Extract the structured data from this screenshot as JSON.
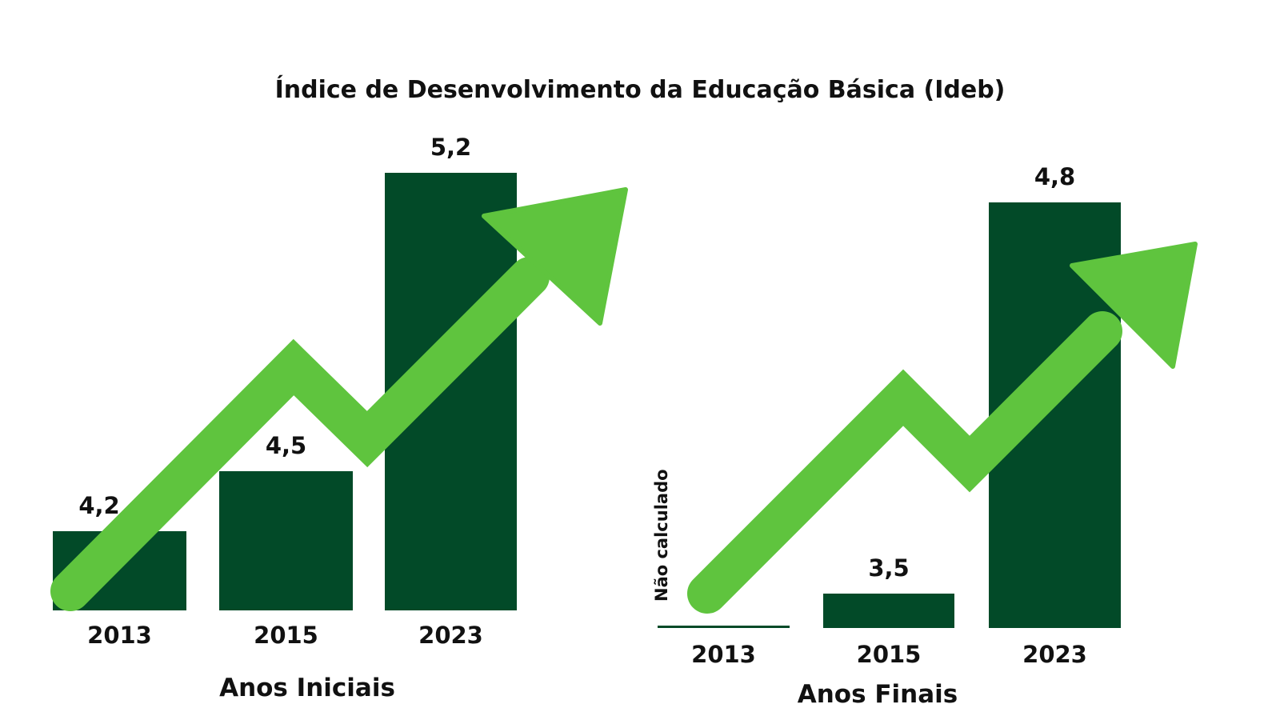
{
  "title": "Índice de Desenvolvimento da Educação Básica (Ideb)",
  "colors": {
    "bar": "#024a28",
    "arrow": "#5fc43e",
    "text": "#111111",
    "background": "#ffffff"
  },
  "chart_data": [
    {
      "type": "bar",
      "xlabel": "Anos Iniciais",
      "categories": [
        "2013",
        "2015",
        "2023"
      ],
      "values": [
        4.2,
        4.5,
        5.2
      ],
      "value_labels": [
        "4,2",
        "4,5",
        "5,2"
      ],
      "notes": [
        "",
        "",
        ""
      ]
    },
    {
      "type": "bar",
      "xlabel": "Anos Finais",
      "categories": [
        "2013",
        "2015",
        "2023"
      ],
      "values": [
        null,
        3.5,
        4.8
      ],
      "value_labels": [
        "",
        "3,5",
        "4,8"
      ],
      "notes": [
        "Não calculado",
        "",
        ""
      ]
    }
  ]
}
